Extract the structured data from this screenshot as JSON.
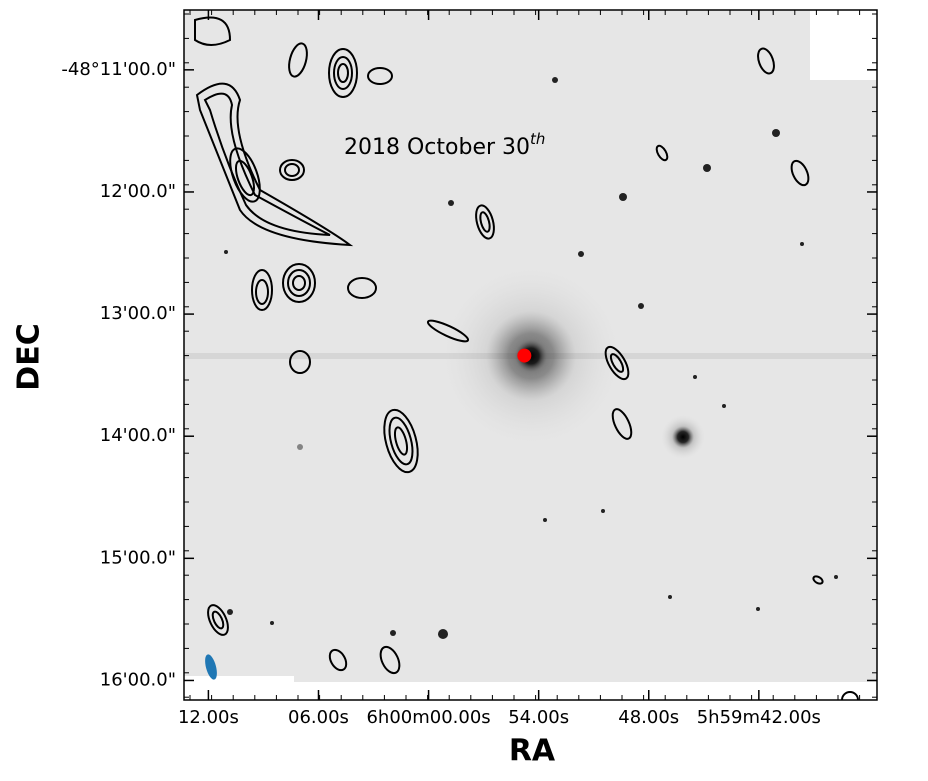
{
  "chart_data": {
    "type": "image",
    "xlabel": "RA",
    "ylabel": "DEC",
    "annotation": "2018 October 30",
    "annotation_sup": "th",
    "xlim": [
      13.33,
      -24.44
    ],
    "xticks": [
      {
        "value": 12,
        "label": "12.00s"
      },
      {
        "value": 6,
        "label": "06.00s"
      },
      {
        "value": 0,
        "label": "6h00m00.00s"
      },
      {
        "value": -6,
        "label": "54.00s"
      },
      {
        "value": -12,
        "label": "48.00s"
      },
      {
        "value": -18,
        "label": "5h59m42.00s"
      }
    ],
    "ylim": [
      16.16,
      10.51
    ],
    "yticks": [
      {
        "value": 11,
        "label": "-48°11'00.0\""
      },
      {
        "value": 12,
        "label": "12'00.0\""
      },
      {
        "value": 13,
        "label": "13'00.0\""
      },
      {
        "value": 14,
        "label": "14'00.0\""
      },
      {
        "value": 15,
        "label": "15'00.0\""
      },
      {
        "value": 16,
        "label": "16'00.0\""
      }
    ],
    "marker": {
      "x": -5.22,
      "y": 13.34,
      "color": "#ff0000"
    }
  }
}
